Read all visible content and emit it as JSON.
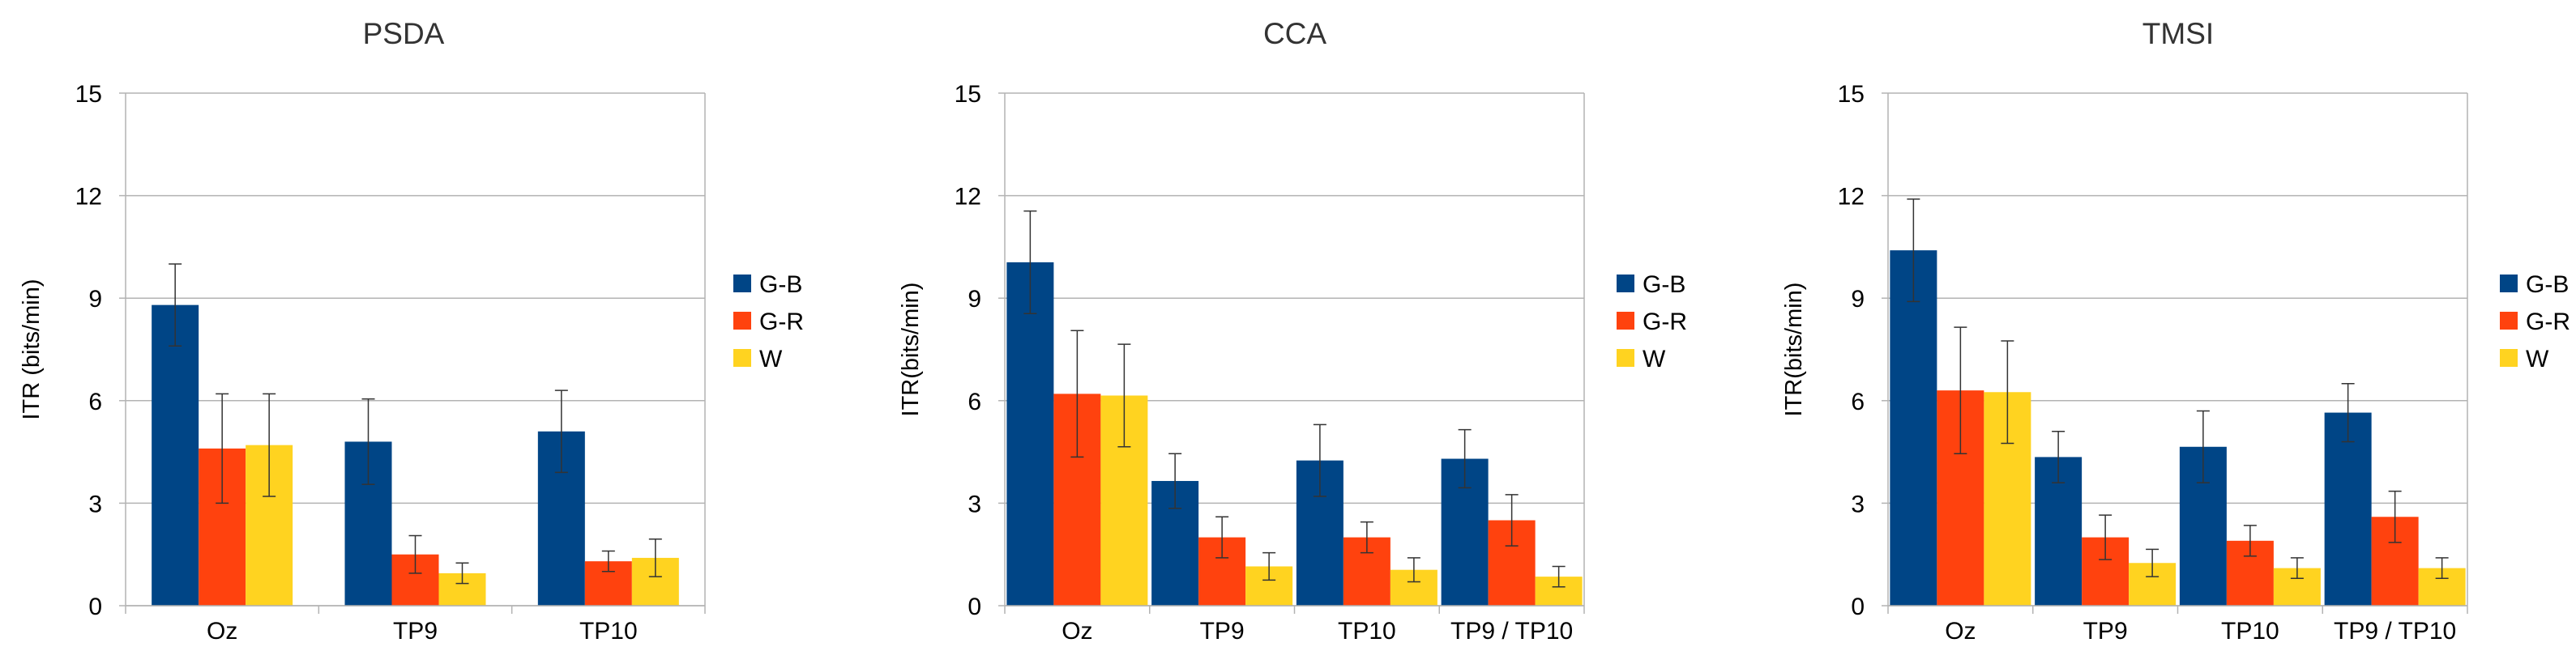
{
  "chart_data": [
    {
      "type": "bar",
      "title": "PSDA",
      "ylabel": "ITR (bits/min)",
      "xlabel": "",
      "ylim": [
        0,
        15
      ],
      "yticks": [
        0,
        3,
        6,
        9,
        12,
        15
      ],
      "categories": [
        "Oz",
        "TP9",
        "TP10"
      ],
      "legend_position": "right",
      "series": [
        {
          "name": "G-B",
          "color": "#004586",
          "values": [
            8.8,
            4.8,
            5.1
          ],
          "errors": [
            1.2,
            1.25,
            1.2
          ]
        },
        {
          "name": "G-R",
          "color": "#ff420e",
          "values": [
            4.6,
            1.5,
            1.3
          ],
          "errors": [
            1.6,
            0.55,
            0.3
          ]
        },
        {
          "name": "W",
          "color": "#ffd320",
          "values": [
            4.7,
            0.95,
            1.4
          ],
          "errors": [
            1.5,
            0.3,
            0.55
          ]
        }
      ]
    },
    {
      "type": "bar",
      "title": "CCA",
      "ylabel": "ITR(bits/min)",
      "xlabel": "",
      "ylim": [
        0,
        15
      ],
      "yticks": [
        0,
        3,
        6,
        9,
        12,
        15
      ],
      "categories": [
        "Oz",
        "TP9",
        "TP10",
        "TP9 / TP10"
      ],
      "legend_position": "right",
      "series": [
        {
          "name": "G-B",
          "color": "#004586",
          "values": [
            10.05,
            3.65,
            4.25,
            4.3
          ],
          "errors": [
            1.5,
            0.8,
            1.05,
            0.85
          ]
        },
        {
          "name": "G-R",
          "color": "#ff420e",
          "values": [
            6.2,
            2.0,
            2.0,
            2.5
          ],
          "errors": [
            1.85,
            0.6,
            0.45,
            0.75
          ]
        },
        {
          "name": "W",
          "color": "#ffd320",
          "values": [
            6.15,
            1.15,
            1.05,
            0.85
          ],
          "errors": [
            1.5,
            0.4,
            0.35,
            0.3
          ]
        }
      ]
    },
    {
      "type": "bar",
      "title": "TMSI",
      "ylabel": "ITR(bits/min)",
      "xlabel": "",
      "ylim": [
        0,
        15
      ],
      "yticks": [
        0,
        3,
        6,
        9,
        12,
        15
      ],
      "categories": [
        "Oz",
        "TP9",
        "TP10",
        "TP9 / TP10"
      ],
      "legend_position": "right",
      "series": [
        {
          "name": "G-B",
          "color": "#004586",
          "values": [
            10.4,
            4.35,
            4.65,
            5.65
          ],
          "errors": [
            1.5,
            0.75,
            1.05,
            0.85
          ]
        },
        {
          "name": "G-R",
          "color": "#ff420e",
          "values": [
            6.3,
            2.0,
            1.9,
            2.6
          ],
          "errors": [
            1.85,
            0.65,
            0.45,
            0.75
          ]
        },
        {
          "name": "W",
          "color": "#ffd320",
          "values": [
            6.25,
            1.25,
            1.1,
            1.1
          ],
          "errors": [
            1.5,
            0.4,
            0.3,
            0.3
          ]
        }
      ]
    }
  ]
}
